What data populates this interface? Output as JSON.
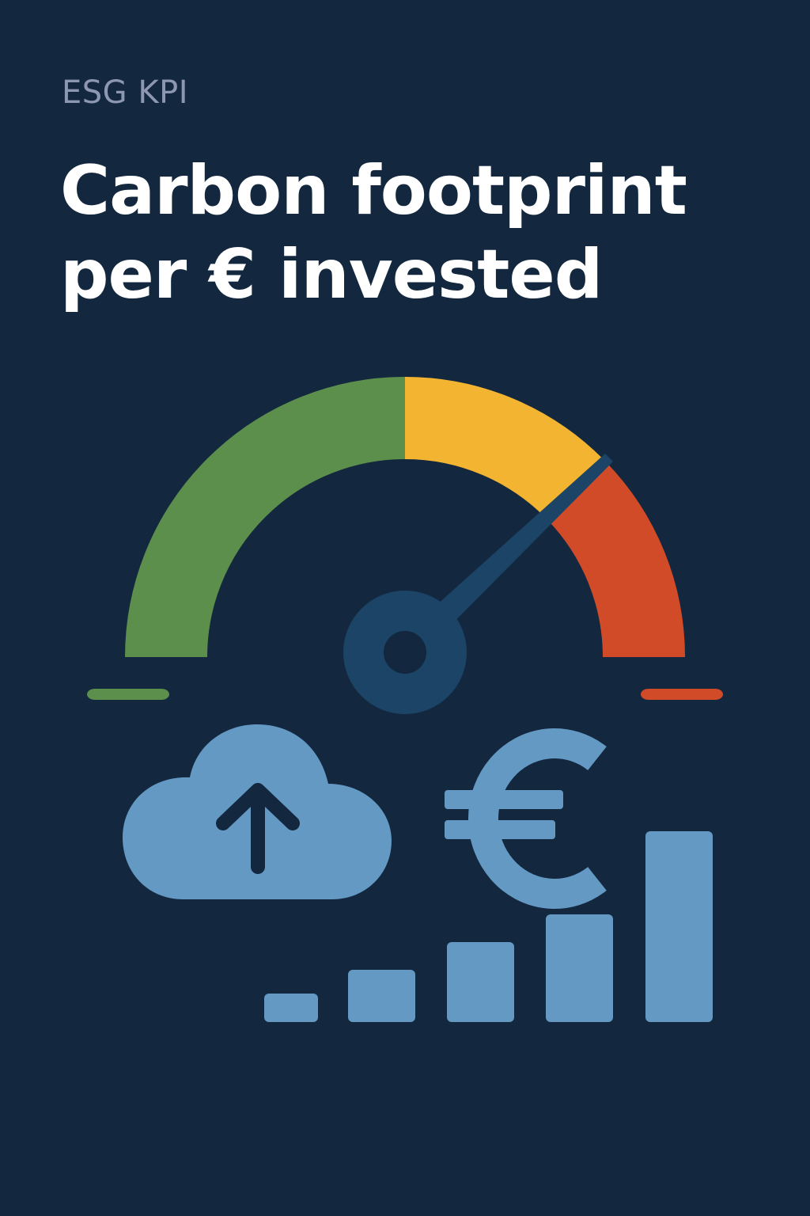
{
  "header": {
    "kicker": "ESG KPI",
    "title_line1": "Carbon footprint",
    "title_line2": "per € invested"
  },
  "gauge": {
    "segments": [
      {
        "name": "low",
        "color": "#5b8f4b"
      },
      {
        "name": "medium",
        "color": "#f3b431"
      },
      {
        "name": "high",
        "color": "#d14b28"
      }
    ],
    "needle_color": "#1b4466",
    "needle_level_percent": 75
  },
  "icons": {
    "cloud": "cloud-upload-icon",
    "currency": "euro-icon",
    "bars": "bar-chart-icon",
    "color": "#6499c4"
  },
  "colors": {
    "background": "#13283f",
    "title": "#ffffff",
    "kicker": "#8e97b2"
  }
}
